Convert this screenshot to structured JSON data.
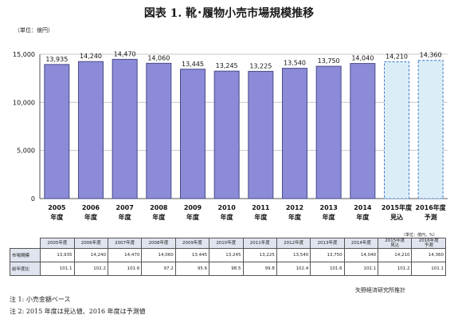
{
  "title": "図表 1. 靴･履物小売市場規模推移",
  "unit_label": "（単位：億円）",
  "chart_data": {
    "type": "bar",
    "categories": [
      "2005 年度",
      "2006 年度",
      "2007 年度",
      "2008 年度",
      "2009 年度",
      "2010 年度",
      "2011 年度",
      "2012 年度",
      "2013 年度",
      "2014 年度",
      "2015年度 見込",
      "2016年度 予測"
    ],
    "category_lines": [
      [
        "2005",
        "年度"
      ],
      [
        "2006",
        "年度"
      ],
      [
        "2007",
        "年度"
      ],
      [
        "2008",
        "年度"
      ],
      [
        "2009",
        "年度"
      ],
      [
        "2010",
        "年度"
      ],
      [
        "2011",
        "年度"
      ],
      [
        "2012",
        "年度"
      ],
      [
        "2013",
        "年度"
      ],
      [
        "2014",
        "年度"
      ],
      [
        "2015年度",
        "見込"
      ],
      [
        "2016年度",
        "予測"
      ]
    ],
    "values": [
      13935,
      14240,
      14470,
      14060,
      13445,
      13245,
      13225,
      13540,
      13750,
      14040,
      14210,
      14360
    ],
    "value_labels": [
      "13,935",
      "14,240",
      "14,470",
      "14,060",
      "13,445",
      "13,245",
      "13,225",
      "13,540",
      "13,750",
      "14,040",
      "14,210",
      "14,360"
    ],
    "projected": [
      false,
      false,
      false,
      false,
      false,
      false,
      false,
      false,
      false,
      false,
      true,
      true
    ],
    "ylim": [
      0,
      15000
    ],
    "yticks": [
      0,
      5000,
      10000,
      15000
    ],
    "ytick_labels": [
      "0",
      "5,000",
      "10,000",
      "15,000"
    ],
    "grid": true,
    "bar_color": "#8b8bd8",
    "projected_fill": "#dbeef8",
    "projected_border": "#3c78c8"
  },
  "table": {
    "unit": "（単位：億円，%）",
    "headers": [
      "2005年度",
      "2006年度",
      "2007年度",
      "2008年度",
      "2009年度",
      "2010年度",
      "2011年度",
      "2012年度",
      "2013年度",
      "2014年度",
      "2015年度 見込",
      "2016年度 予測"
    ],
    "rows": [
      {
        "label": "市場規模",
        "values": [
          "13,935",
          "14,240",
          "14,470",
          "14,060",
          "13,445",
          "13,245",
          "13,225",
          "13,540",
          "13,750",
          "14,040",
          "14,210",
          "14,360"
        ]
      },
      {
        "label": "前年度比",
        "values": [
          "101.1",
          "102.2",
          "101.6",
          "97.2",
          "95.6",
          "98.5",
          "99.8",
          "102.4",
          "101.6",
          "102.1",
          "101.2",
          "101.1"
        ]
      }
    ]
  },
  "source": "矢野経済研究所推計",
  "notes": [
    "注 1:  小売金額ベース",
    "注 2: 2015 年度は見込値、2016 年度は予測値"
  ]
}
